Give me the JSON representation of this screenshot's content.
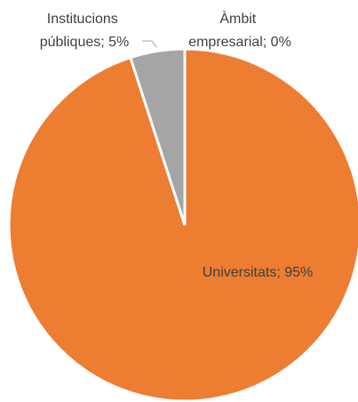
{
  "chart_data": {
    "type": "pie",
    "title": "",
    "categories": [
      "Universitats",
      "Institucions públiques",
      "Àmbit empresarial"
    ],
    "values": [
      95,
      5,
      0
    ],
    "value_format": "percent",
    "colors": [
      "#ED7D31",
      "#A5A5A5",
      "#4472C4"
    ],
    "data_labels": [
      [
        "Universitats; 95%"
      ],
      [
        "Institucions",
        "públiques; 5%"
      ],
      [
        "Àmbit",
        "empresarial; 0%"
      ]
    ],
    "legend": "none",
    "start_angle_degrees": 0,
    "direction": "clockwise"
  }
}
